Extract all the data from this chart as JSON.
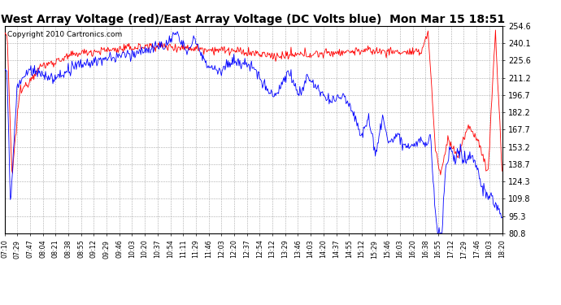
{
  "title": "West Array Voltage (red)/East Array Voltage (DC Volts blue)  Mon Mar 15 18:51",
  "copyright": "Copyright 2010 Cartronics.com",
  "ylim": [
    80.8,
    254.6
  ],
  "yticks": [
    80.8,
    95.3,
    109.8,
    124.3,
    138.7,
    153.2,
    167.7,
    182.2,
    196.7,
    211.2,
    225.6,
    240.1,
    254.6
  ],
  "background_color": "#ffffff",
  "plot_bg_color": "#ffffff",
  "grid_color": "#aaaaaa",
  "red_color": "#ff0000",
  "blue_color": "#0000ff",
  "title_fontsize": 10,
  "x_tick_labels": [
    "07:10",
    "07:29",
    "07:47",
    "08:04",
    "08:21",
    "08:38",
    "08:55",
    "09:12",
    "09:29",
    "09:46",
    "10:03",
    "10:20",
    "10:37",
    "10:54",
    "11:11",
    "11:29",
    "11:46",
    "12:03",
    "12:20",
    "12:37",
    "12:54",
    "13:12",
    "13:29",
    "13:46",
    "14:03",
    "14:20",
    "14:37",
    "14:55",
    "15:12",
    "15:29",
    "15:46",
    "16:03",
    "16:20",
    "16:38",
    "16:55",
    "17:12",
    "17:29",
    "17:46",
    "18:03",
    "18:20"
  ]
}
